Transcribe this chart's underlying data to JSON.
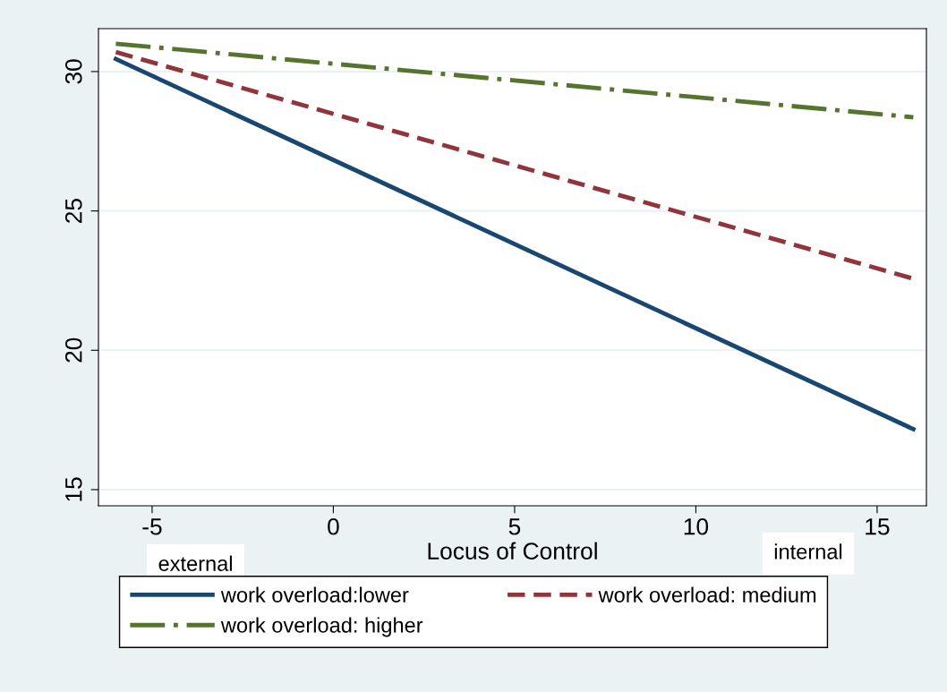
{
  "chart_data": {
    "type": "line",
    "xlabel": "Locus of Control",
    "x": [
      -6,
      16
    ],
    "series": [
      {
        "name": "work overload:lower",
        "color": "#1a476f",
        "values": [
          30.45,
          17.17
        ],
        "line_style": "solid"
      },
      {
        "name": "work overload: medium",
        "color": "#90353b",
        "values": [
          30.7,
          22.57
        ],
        "line_style": "dashed"
      },
      {
        "name": "work overload: higher",
        "color": "#55752f",
        "values": [
          31.0,
          28.36
        ],
        "line_style": "dashdot"
      }
    ],
    "xlim": [
      -6.48,
      16.36
    ],
    "xticks": [
      -5,
      0,
      5,
      10,
      15
    ],
    "ylim": [
      14.42,
      31.54
    ],
    "yticks": [
      15,
      20,
      25,
      30
    ],
    "annotations": [
      "external",
      "internal"
    ],
    "grid": "y",
    "legend": "bottom",
    "marker": "none"
  }
}
